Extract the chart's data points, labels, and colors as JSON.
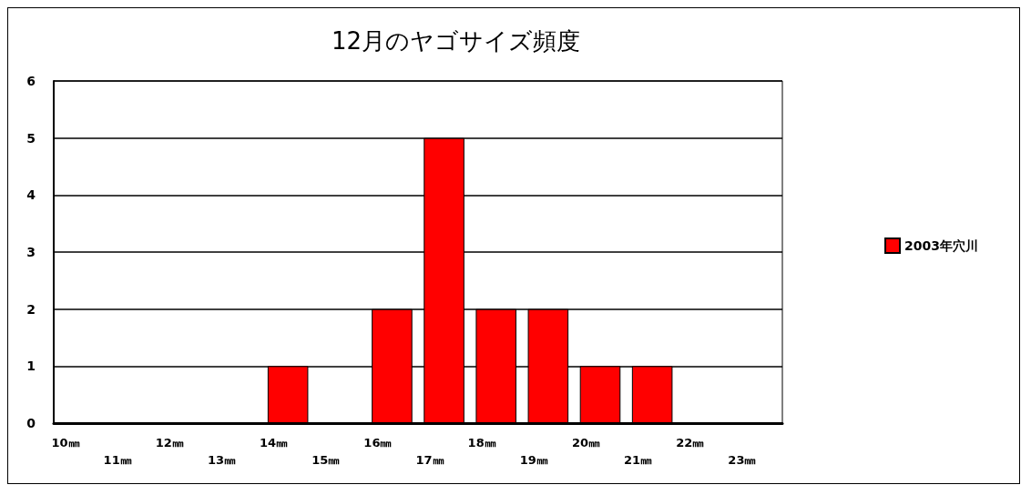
{
  "chart_data": {
    "type": "bar",
    "title": "12月のヤゴサイズ頻度",
    "categories": [
      "10㎜",
      "11㎜",
      "12㎜",
      "13㎜",
      "14㎜",
      "15㎜",
      "16㎜",
      "17㎜",
      "18㎜",
      "19㎜",
      "20㎜",
      "21㎜",
      "22㎜",
      "23㎜"
    ],
    "series": [
      {
        "name": "2003年穴川",
        "color": "#ff0000",
        "values": [
          0,
          0,
          0,
          0,
          1,
          0,
          2,
          5,
          2,
          2,
          1,
          1,
          0,
          0
        ]
      }
    ],
    "ylim": [
      0,
      6
    ],
    "yticks": [
      0,
      1,
      2,
      3,
      4,
      5,
      6
    ],
    "grid": "y",
    "legend": "right"
  }
}
